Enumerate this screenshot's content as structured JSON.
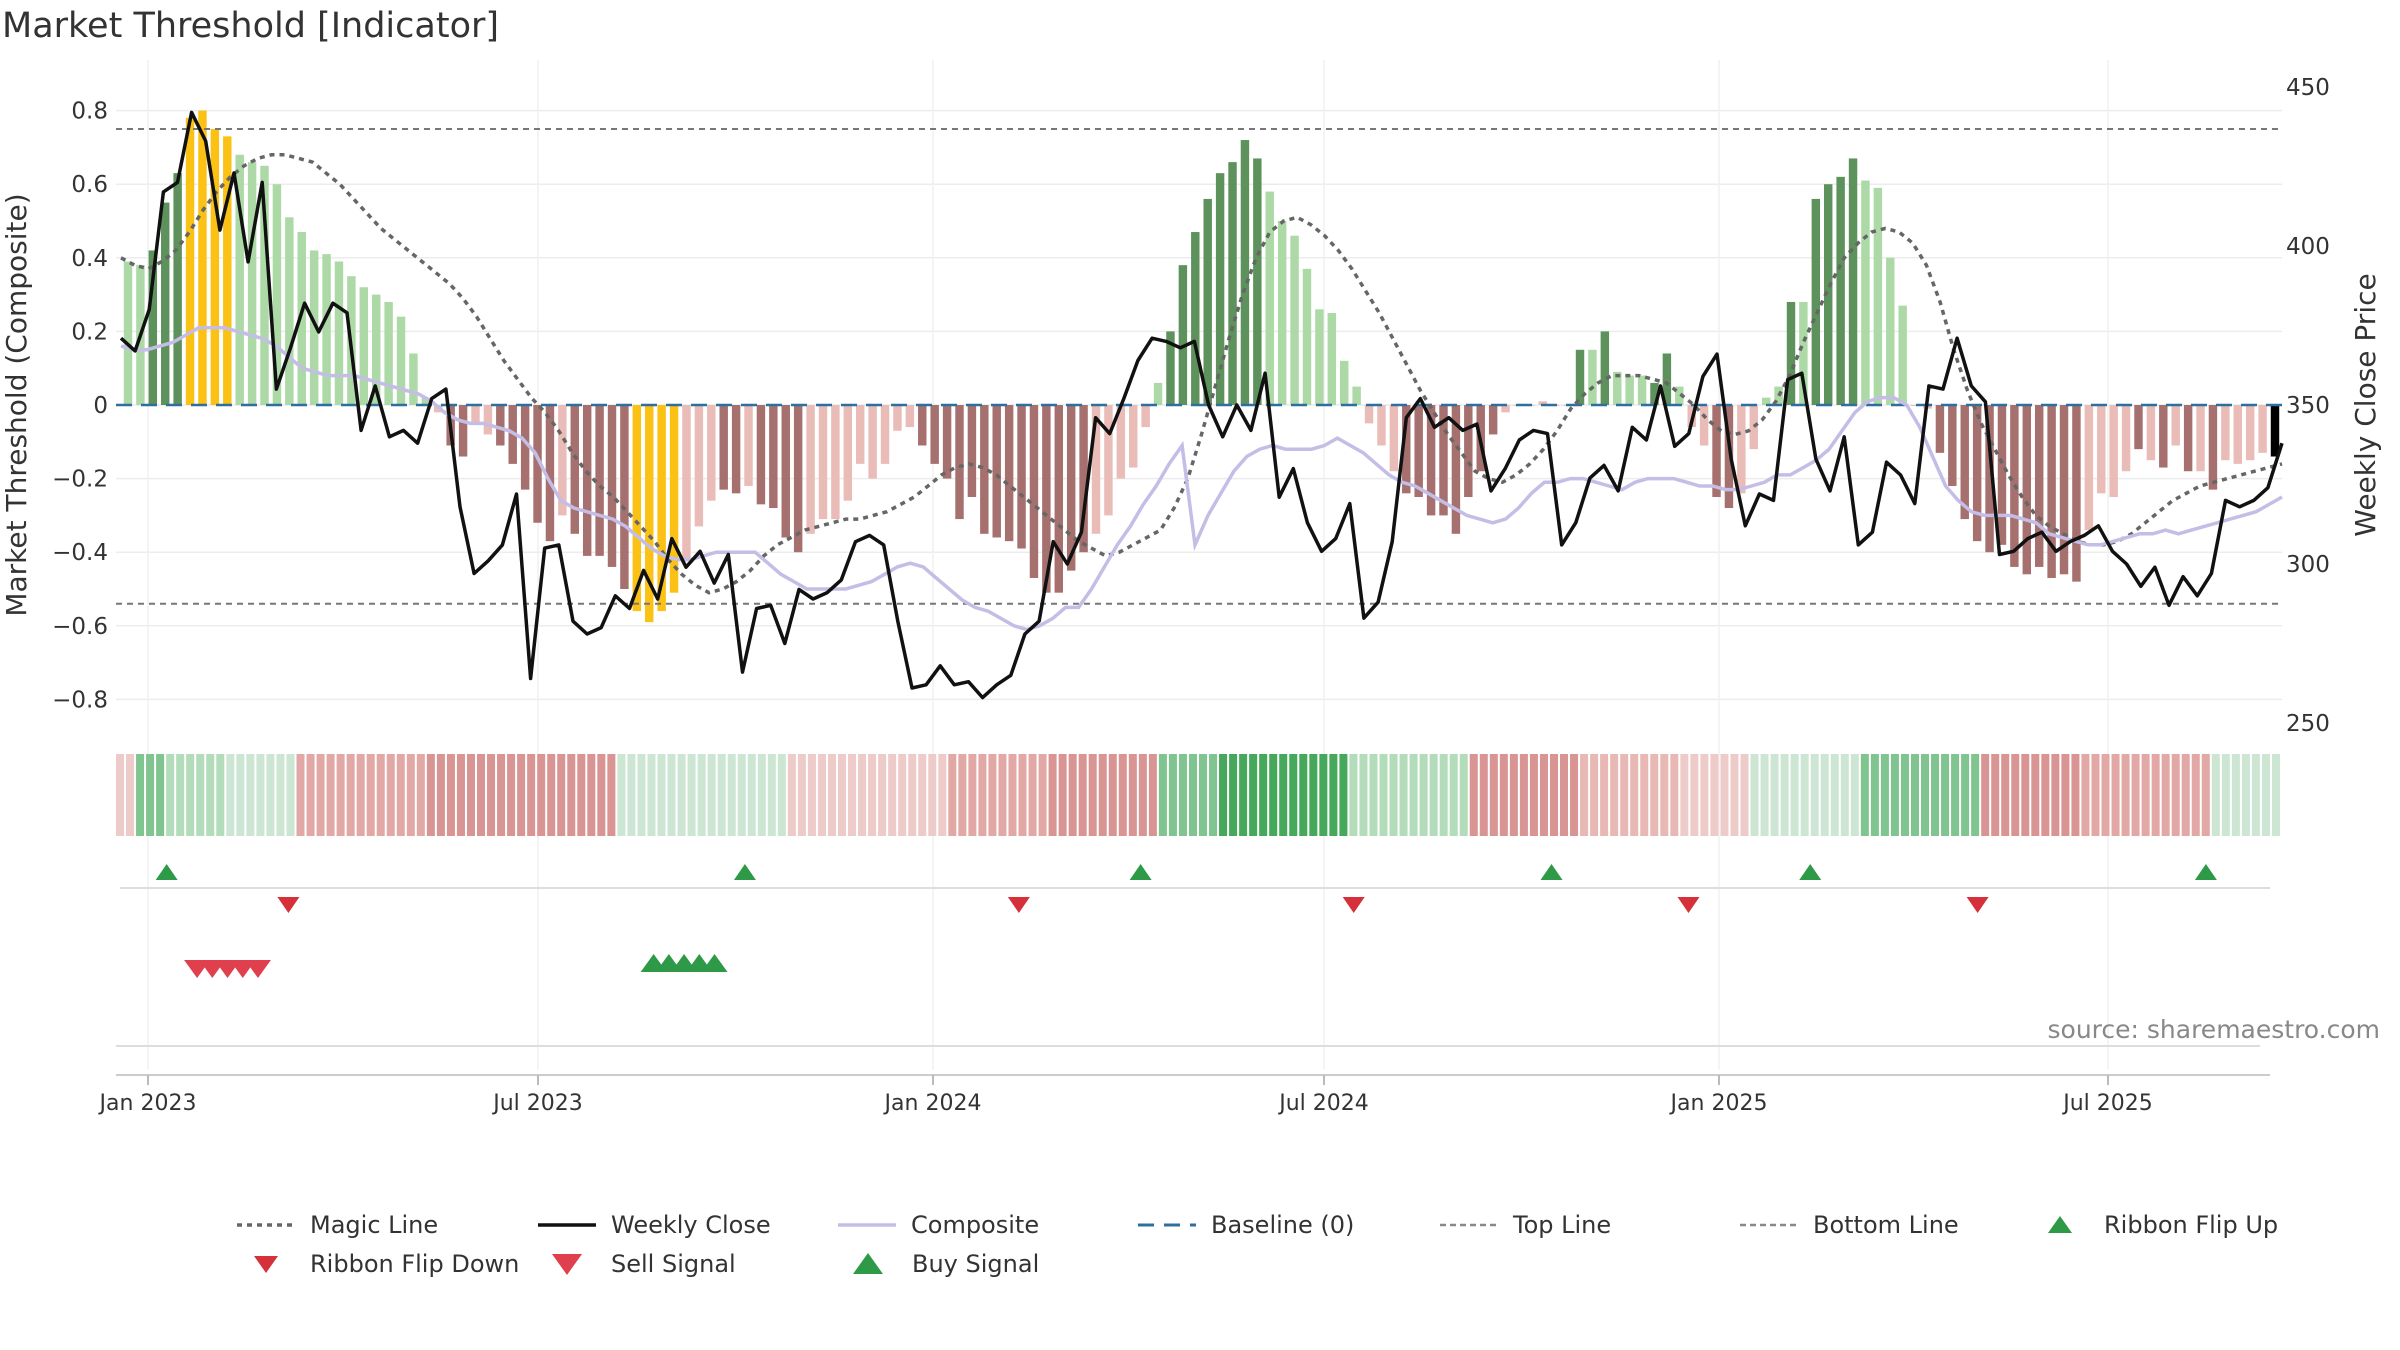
{
  "chart_data": {
    "type": "bar",
    "title": "Market Threshold [Indicator]",
    "ylabel": "Market Threshold (Composite)",
    "y2label": "Weekly Close Price",
    "source": "source: sharemaestro.com",
    "ylim": [
      -0.88,
      0.88
    ],
    "y2lim": [
      250,
      450
    ],
    "yticks": [
      "0.8",
      "0.6",
      "0.4",
      "0.2",
      "0",
      "−0.2",
      "−0.4",
      "−0.6",
      "−0.8"
    ],
    "y2ticks": [
      "450",
      "400",
      "350",
      "300",
      "250"
    ],
    "xticks": [
      "Jan 2023",
      "Jul 2023",
      "Jan 2024",
      "Jul 2024",
      "Jan 2025",
      "Jul 2025"
    ],
    "top_line": 0.75,
    "bottom_line": -0.54,
    "histogram": [
      0.39,
      0.38,
      0.42,
      0.55,
      0.63,
      0.78,
      0.8,
      0.75,
      0.73,
      0.68,
      0.66,
      0.65,
      0.6,
      0.51,
      0.47,
      0.42,
      0.41,
      0.39,
      0.35,
      0.32,
      0.3,
      0.28,
      0.24,
      0.14,
      0.02,
      -0.02,
      -0.11,
      -0.14,
      -0.05,
      -0.08,
      -0.11,
      -0.16,
      -0.23,
      -0.32,
      -0.37,
      -0.3,
      -0.35,
      -0.41,
      -0.41,
      -0.44,
      -0.5,
      -0.56,
      -0.59,
      -0.56,
      -0.51,
      -0.42,
      -0.33,
      -0.26,
      -0.23,
      -0.24,
      -0.22,
      -0.27,
      -0.28,
      -0.36,
      -0.4,
      -0.35,
      -0.31,
      -0.31,
      -0.26,
      -0.16,
      -0.2,
      -0.16,
      -0.07,
      -0.06,
      -0.11,
      -0.16,
      -0.2,
      -0.31,
      -0.25,
      -0.35,
      -0.36,
      -0.37,
      -0.39,
      -0.47,
      -0.51,
      -0.51,
      -0.45,
      -0.4,
      -0.35,
      -0.3,
      -0.2,
      -0.17,
      -0.06,
      0.06,
      0.2,
      0.38,
      0.47,
      0.56,
      0.63,
      0.66,
      0.72,
      0.67,
      0.58,
      0.5,
      0.46,
      0.37,
      0.26,
      0.25,
      0.12,
      0.05,
      -0.05,
      -0.11,
      -0.18,
      -0.24,
      -0.25,
      -0.3,
      -0.3,
      -0.35,
      -0.25,
      -0.18,
      -0.08,
      -0.02,
      0.0,
      0.0,
      0.01,
      0.0,
      0.0,
      0.15,
      0.15,
      0.2,
      0.09,
      0.08,
      0.08,
      0.06,
      0.14,
      0.05,
      -0.06,
      -0.11,
      -0.25,
      -0.28,
      -0.24,
      -0.12,
      0.02,
      0.05,
      0.28,
      0.28,
      0.56,
      0.6,
      0.62,
      0.67,
      0.61,
      0.59,
      0.4,
      0.27,
      0.0,
      -0.01,
      -0.13,
      -0.22,
      -0.31,
      -0.37,
      -0.4,
      -0.38,
      -0.44,
      -0.46,
      -0.44,
      -0.47,
      -0.46,
      -0.48,
      -0.34,
      -0.24,
      -0.25,
      -0.18,
      -0.12,
      -0.15,
      -0.17,
      -0.11,
      -0.18,
      -0.18,
      -0.23,
      -0.15,
      -0.16,
      -0.15,
      -0.13,
      -0.14
    ],
    "bar_colors": [
      2,
      2,
      3,
      3,
      3,
      4,
      4,
      4,
      4,
      2,
      2,
      2,
      2,
      2,
      2,
      2,
      2,
      2,
      2,
      2,
      2,
      2,
      2,
      2,
      2,
      1,
      0,
      0,
      1,
      1,
      0,
      0,
      0,
      0,
      0,
      1,
      0,
      0,
      0,
      0,
      0,
      4,
      4,
      4,
      4,
      1,
      1,
      1,
      0,
      0,
      1,
      0,
      0,
      0,
      0,
      1,
      1,
      1,
      1,
      1,
      1,
      1,
      1,
      1,
      0,
      0,
      0,
      0,
      0,
      0,
      0,
      0,
      0,
      0,
      0,
      0,
      0,
      0,
      1,
      1,
      1,
      1,
      1,
      2,
      3,
      3,
      3,
      3,
      3,
      3,
      3,
      3,
      2,
      2,
      2,
      2,
      2,
      2,
      2,
      2,
      1,
      1,
      1,
      0,
      0,
      0,
      0,
      0,
      0,
      0,
      0,
      1,
      1,
      1,
      1,
      1,
      1,
      3,
      2,
      3,
      2,
      2,
      2,
      3,
      3,
      2,
      1,
      1,
      0,
      0,
      1,
      1,
      2,
      2,
      3,
      2,
      3,
      3,
      3,
      3,
      2,
      2,
      2,
      2,
      1,
      1,
      0,
      0,
      0,
      0,
      0,
      0,
      0,
      0,
      0,
      0,
      0,
      0,
      1,
      1,
      1,
      1,
      0,
      1,
      0,
      1,
      0,
      1,
      0,
      1,
      1,
      1,
      1
    ],
    "close": [
      371,
      367,
      380,
      417,
      420,
      442,
      433,
      405,
      423,
      395,
      420,
      355,
      368,
      382,
      373,
      382,
      379,
      342,
      356,
      340,
      342,
      338,
      352,
      355,
      318,
      297,
      301,
      306,
      322,
      264,
      305,
      306,
      282,
      278,
      280,
      290,
      286,
      298,
      289,
      308,
      299,
      304,
      294,
      303,
      266,
      286,
      287,
      275,
      292,
      289,
      291,
      295,
      307,
      309,
      306,
      282,
      261,
      262,
      268,
      262,
      263,
      258,
      262,
      265,
      278,
      282,
      307,
      300,
      310,
      346,
      341,
      352,
      364,
      371,
      370,
      368,
      370,
      350,
      340,
      350,
      342,
      360,
      321,
      330,
      313,
      304,
      308,
      319,
      283,
      288,
      307,
      346,
      352,
      343,
      346,
      342,
      344,
      323,
      330,
      339,
      342,
      341,
      306,
      313,
      327,
      331,
      323,
      343,
      339,
      356,
      337,
      341,
      359,
      366,
      333,
      312,
      322,
      320,
      358,
      360,
      333,
      323,
      340,
      306,
      310,
      332,
      328,
      319,
      356,
      355,
      371,
      356,
      351,
      303,
      304,
      308,
      310,
      304,
      307,
      309,
      312,
      304,
      300,
      293,
      299,
      287,
      296,
      290,
      297,
      320,
      318,
      320,
      324,
      338
    ],
    "magic_line": [
      0.4,
      0.38,
      0.37,
      0.39,
      0.42,
      0.47,
      0.53,
      0.58,
      0.62,
      0.65,
      0.67,
      0.68,
      0.68,
      0.67,
      0.66,
      0.63,
      0.6,
      0.56,
      0.52,
      0.48,
      0.45,
      0.42,
      0.39,
      0.36,
      0.33,
      0.29,
      0.24,
      0.18,
      0.12,
      0.07,
      0.02,
      -0.02,
      -0.07,
      -0.13,
      -0.18,
      -0.22,
      -0.25,
      -0.29,
      -0.33,
      -0.37,
      -0.42,
      -0.46,
      -0.49,
      -0.51,
      -0.5,
      -0.48,
      -0.45,
      -0.41,
      -0.38,
      -0.36,
      -0.34,
      -0.33,
      -0.32,
      -0.31,
      -0.31,
      -0.3,
      -0.29,
      -0.27,
      -0.25,
      -0.22,
      -0.19,
      -0.17,
      -0.16,
      -0.17,
      -0.19,
      -0.22,
      -0.25,
      -0.28,
      -0.31,
      -0.34,
      -0.37,
      -0.39,
      -0.41,
      -0.4,
      -0.38,
      -0.36,
      -0.34,
      -0.28,
      -0.2,
      -0.08,
      0.05,
      0.18,
      0.3,
      0.4,
      0.47,
      0.5,
      0.51,
      0.49,
      0.46,
      0.42,
      0.37,
      0.31,
      0.25,
      0.18,
      0.11,
      0.04,
      -0.02,
      -0.08,
      -0.13,
      -0.18,
      -0.2,
      -0.21,
      -0.19,
      -0.16,
      -0.12,
      -0.07,
      -0.01,
      0.03,
      0.06,
      0.08,
      0.08,
      0.08,
      0.07,
      0.06,
      0.03,
      0.0,
      -0.04,
      -0.07,
      -0.08,
      -0.07,
      -0.04,
      0.01,
      0.08,
      0.17,
      0.25,
      0.33,
      0.4,
      0.44,
      0.47,
      0.48,
      0.47,
      0.44,
      0.38,
      0.28,
      0.15,
      0.04,
      -0.05,
      -0.12,
      -0.19,
      -0.25,
      -0.3,
      -0.33,
      -0.35,
      -0.37,
      -0.38,
      -0.38,
      -0.37,
      -0.35,
      -0.32,
      -0.29,
      -0.26,
      -0.24,
      -0.22,
      -0.21,
      -0.2,
      -0.19,
      -0.18,
      -0.17,
      -0.16
    ],
    "composite": [
      0.16,
      0.15,
      0.15,
      0.16,
      0.17,
      0.19,
      0.21,
      0.21,
      0.21,
      0.2,
      0.19,
      0.18,
      0.16,
      0.13,
      0.1,
      0.09,
      0.08,
      0.08,
      0.08,
      0.07,
      0.06,
      0.05,
      0.04,
      0.03,
      0.01,
      -0.02,
      -0.04,
      -0.05,
      -0.05,
      -0.06,
      -0.07,
      -0.09,
      -0.13,
      -0.2,
      -0.26,
      -0.28,
      -0.29,
      -0.3,
      -0.31,
      -0.33,
      -0.36,
      -0.39,
      -0.41,
      -0.42,
      -0.42,
      -0.41,
      -0.4,
      -0.4,
      -0.4,
      -0.4,
      -0.43,
      -0.46,
      -0.48,
      -0.5,
      -0.5,
      -0.5,
      -0.5,
      -0.49,
      -0.48,
      -0.46,
      -0.44,
      -0.43,
      -0.44,
      -0.47,
      -0.5,
      -0.53,
      -0.55,
      -0.56,
      -0.58,
      -0.6,
      -0.61,
      -0.6,
      -0.58,
      -0.55,
      -0.55,
      -0.5,
      -0.44,
      -0.38,
      -0.33,
      -0.27,
      -0.22,
      -0.16,
      -0.11,
      -0.38,
      -0.3,
      -0.24,
      -0.18,
      -0.14,
      -0.12,
      -0.11,
      -0.12,
      -0.12,
      -0.12,
      -0.11,
      -0.09,
      -0.11,
      -0.13,
      -0.16,
      -0.19,
      -0.21,
      -0.22,
      -0.24,
      -0.26,
      -0.28,
      -0.3,
      -0.31,
      -0.32,
      -0.31,
      -0.28,
      -0.24,
      -0.21,
      -0.21,
      -0.2,
      -0.2,
      -0.21,
      -0.22,
      -0.23,
      -0.21,
      -0.2,
      -0.2,
      -0.2,
      -0.21,
      -0.22,
      -0.22,
      -0.23,
      -0.23,
      -0.22,
      -0.21,
      -0.19,
      -0.19,
      -0.17,
      -0.15,
      -0.12,
      -0.07,
      -0.02,
      0.01,
      0.02,
      0.02,
      0.0,
      -0.06,
      -0.14,
      -0.22,
      -0.26,
      -0.29,
      -0.3,
      -0.3,
      -0.3,
      -0.31,
      -0.32,
      -0.35,
      -0.36,
      -0.37,
      -0.38,
      -0.38,
      -0.37,
      -0.36,
      -0.35,
      -0.35,
      -0.34,
      -0.35,
      -0.34,
      -0.33,
      -0.32,
      -0.31,
      -0.3,
      -0.29,
      -0.27,
      -0.25
    ],
    "ribbon": [
      1,
      1,
      1,
      1,
      5,
      5,
      5,
      5,
      5,
      5,
      5,
      5,
      6,
      6,
      6,
      6,
      4,
      4,
      4,
      4,
      4,
      1,
      1,
      1,
      1,
      1,
      1,
      1,
      1,
      1,
      1,
      1,
      1,
      1,
      1,
      1,
      1,
      1,
      1,
      1,
      1,
      1,
      1,
      1,
      1,
      1,
      1,
      1,
      1,
      1,
      1,
      1,
      1,
      1,
      1,
      1,
      5,
      5,
      5,
      5,
      5,
      5,
      5,
      5,
      5,
      5,
      5,
      5,
      6,
      6,
      6,
      6,
      6,
      6,
      6,
      6,
      6,
      1,
      1,
      1,
      1,
      1,
      1,
      1,
      1,
      1,
      1,
      1,
      1,
      1,
      2,
      2,
      2,
      2,
      2,
      2,
      2,
      2,
      5,
      5,
      5,
      5,
      5,
      5,
      5,
      5,
      5,
      5,
      5,
      5,
      5,
      6,
      6,
      6,
      6,
      6,
      6,
      6,
      7,
      7,
      7,
      7,
      7,
      7,
      7,
      7,
      7,
      5,
      5,
      5,
      5,
      5,
      5,
      5,
      5,
      5,
      5,
      5,
      5,
      5,
      5,
      1,
      1,
      1,
      1,
      1,
      1,
      1,
      1,
      1,
      1,
      1,
      1,
      1,
      1,
      1,
      1,
      1,
      1,
      1,
      1,
      1,
      1,
      1,
      1,
      1,
      1,
      1,
      1,
      1,
      1,
      1,
      1,
      1,
      1,
      1,
      1,
      1,
      1,
      1,
      1,
      1,
      1,
      1,
      1,
      1,
      1,
      1,
      1,
      1,
      1,
      1,
      1,
      1,
      1,
      1,
      1,
      1,
      1,
      1,
      1,
      1,
      1,
      1,
      1,
      1,
      1,
      1,
      1,
      1,
      1,
      1,
      1,
      1,
      1,
      1,
      1,
      1,
      1,
      1,
      1,
      1,
      1,
      1,
      1,
      1,
      1
    ],
    "ribbon_flip_up": [
      "2023-01-13",
      "2023-10-06",
      "2024-04-05",
      "2024-10-11",
      "2025-02-07",
      "2025-08-08"
    ],
    "ribbon_flip_down": [
      "2023-03-10",
      "2024-02-09",
      "2024-07-12",
      "2024-12-13",
      "2025-04-25"
    ],
    "sell_signal": [
      "2023-01-27",
      "2023-02-03",
      "2023-02-10",
      "2023-02-17",
      "2023-02-24"
    ],
    "buy_signal": [
      "2023-08-25",
      "2023-09-01",
      "2023-09-08",
      "2023-09-15",
      "2023-09-22"
    ],
    "legend": [
      "Magic Line",
      "Weekly Close",
      "Composite",
      "Baseline (0)",
      "Top Line",
      "Bottom Line",
      "Ribbon Flip Up",
      "Ribbon Flip Down",
      "Sell Signal",
      "Buy Signal"
    ],
    "colors": {
      "close": "#111111",
      "magic": "#666666",
      "composite": "#c4bde6",
      "baseline": "#2e6f9e",
      "up": "#2e9a47",
      "down": "#d6313a",
      "sell": "#e0404d",
      "hist": [
        "#a5706e",
        "#e9bcb8",
        "#acd9a6",
        "#5e925c",
        "#fbc115"
      ]
    }
  }
}
